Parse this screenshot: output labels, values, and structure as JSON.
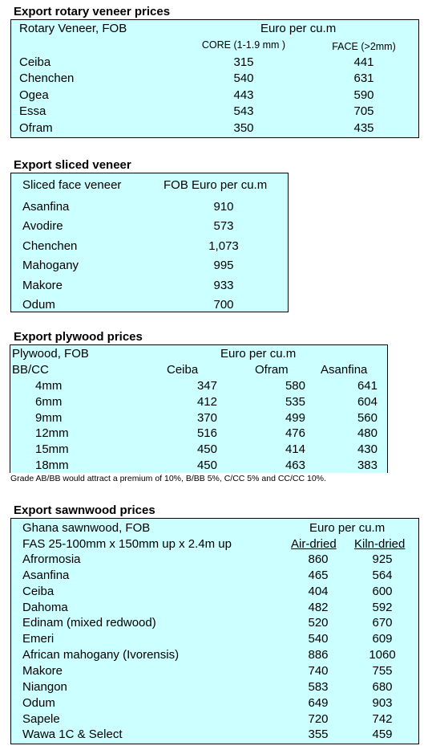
{
  "rotary": {
    "title": "Export rotary veneer prices",
    "header_left": "Rotary Veneer,  FOB",
    "header_right": "Euro  per cu.m",
    "col1": "CORE (1-1.9 mm )",
    "col2": "FACE (>2mm)",
    "rows": [
      {
        "name": "Ceiba",
        "core": "315",
        "face": "441"
      },
      {
        "name": "Chenchen",
        "core": "540",
        "face": "631"
      },
      {
        "name": "Ogea",
        "core": "443",
        "face": "590"
      },
      {
        "name": "Essa",
        "core": "543",
        "face": "705"
      },
      {
        "name": "Ofram",
        "core": "350",
        "face": "435"
      }
    ]
  },
  "sliced": {
    "title": "Export sliced veneer",
    "header_left": "Sliced face veneer",
    "header_right": "FOB Euro per cu.m",
    "rows": [
      {
        "name": "Asanfina",
        "value": "910"
      },
      {
        "name": "Avodire",
        "value": "573"
      },
      {
        "name": "Chenchen",
        "value": "1,073"
      },
      {
        "name": "Mahogany",
        "value": "995"
      },
      {
        "name": "Makore",
        "value": "933"
      },
      {
        "name": "Odum",
        "value": "700"
      }
    ]
  },
  "plywood": {
    "title": "Export plywood prices",
    "header_left": "Plywood, FOB",
    "header_right": "Euro per cu.m",
    "grade": "BB/CC",
    "cols": [
      "Ceiba",
      "Ofram",
      "Asanfina"
    ],
    "rows": [
      {
        "size": "4mm",
        "v": [
          "347",
          "580",
          "641"
        ]
      },
      {
        "size": "6mm",
        "v": [
          "412",
          "535",
          "604"
        ]
      },
      {
        "size": "9mm",
        "v": [
          "370",
          "499",
          "560"
        ]
      },
      {
        "size": "12mm",
        "v": [
          "516",
          "476",
          "480"
        ]
      },
      {
        "size": "15mm",
        "v": [
          "450",
          "414",
          "430"
        ]
      },
      {
        "size": "18mm",
        "v": [
          "450",
          "463",
          "383"
        ]
      }
    ],
    "note": "Grade AB/BB would attract a premium of 10%, B/BB 5%, C/CC 5% and CC/CC 10%."
  },
  "sawn": {
    "title": "Export sawnwood prices",
    "header_left": "Ghana sawnwood, FOB",
    "header_right": "Euro per cu.m",
    "sub_left": "FAS 25-100mm x 150mm up x 2.4m up",
    "col1": "Air-dried",
    "col2": "Kiln-dried",
    "rows": [
      {
        "name": "Afrormosia",
        "air": "860",
        "kiln": "925"
      },
      {
        "name": "Asanfina",
        "air": "465",
        "kiln": "564"
      },
      {
        "name": "Ceiba",
        "air": "404",
        "kiln": "600"
      },
      {
        "name": "Dahoma",
        "air": "482",
        "kiln": "592"
      },
      {
        "name": "Edinam (mixed redwood)",
        "air": "520",
        "kiln": "670"
      },
      {
        "name": "Emeri",
        "air": "540",
        "kiln": "609"
      },
      {
        "name": "African mahogany (Ivorensis)",
        "air": "886",
        "kiln": "1060"
      },
      {
        "name": "Makore",
        "air": "740",
        "kiln": "755"
      },
      {
        "name": "Niangon",
        "air": "583",
        "kiln": "680"
      },
      {
        "name": "Odum",
        "air": "649",
        "kiln": "903"
      },
      {
        "name": "Sapele",
        "air": "720",
        "kiln": "742"
      },
      {
        "name": "Wawa 1C & Select",
        "air": "355",
        "kiln": "459"
      }
    ]
  }
}
